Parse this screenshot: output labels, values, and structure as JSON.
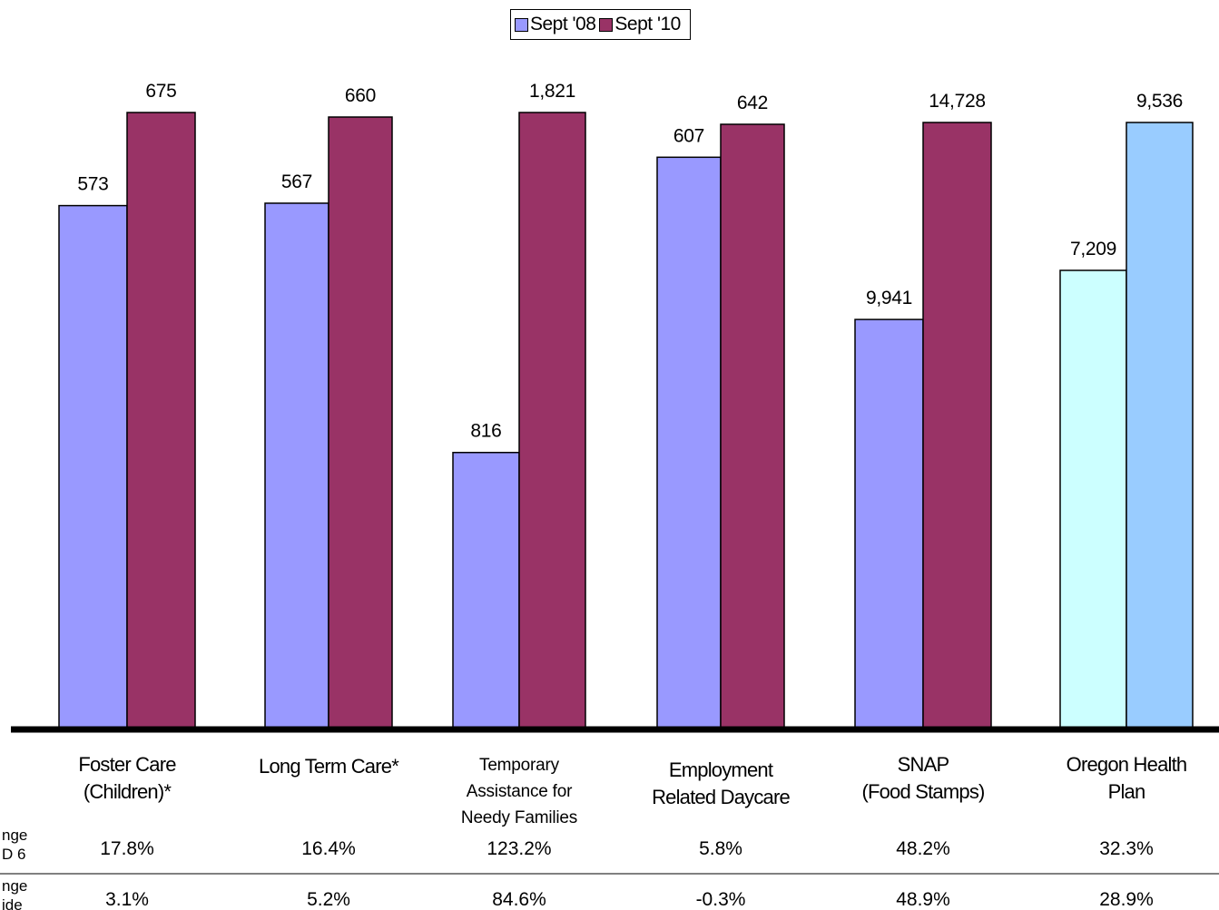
{
  "chart_data": {
    "type": "bar",
    "legend": [
      {
        "name": "Sept '08",
        "color": "#9999ff"
      },
      {
        "name": "Sept '10",
        "color": "#993366"
      }
    ],
    "legend_position": "top-center",
    "categories": [
      {
        "lines": [
          "Foster Care",
          "(Children)*"
        ],
        "small": false
      },
      {
        "lines": [
          "Long Term Care*"
        ],
        "small": false
      },
      {
        "lines": [
          "Temporary",
          "Assistance for",
          "Needy Families"
        ],
        "small": true
      },
      {
        "lines": [
          "Employment",
          "Related Daycare"
        ],
        "small": false
      },
      {
        "lines": [
          "SNAP",
          "(Food Stamps)"
        ],
        "small": false
      },
      {
        "lines": [
          "Oregon Health",
          "Plan"
        ],
        "small": false
      }
    ],
    "series": [
      {
        "name": "Sept '08",
        "values": [
          573,
          567,
          816,
          607,
          9941,
          7209
        ],
        "labels": [
          "573",
          "567",
          "816",
          "607",
          "9,941",
          "7,209"
        ]
      },
      {
        "name": "Sept '10",
        "values": [
          675,
          660,
          1821,
          642,
          14728,
          9536
        ],
        "labels": [
          "675",
          "660",
          "1,821",
          "642",
          "14,728",
          "9,536"
        ]
      }
    ],
    "point_colors": {
      "Sept '08": [
        "#9999ff",
        "#9999ff",
        "#9999ff",
        "#9999ff",
        "#9999ff",
        "#ccffff"
      ],
      "Sept '10": [
        "#993366",
        "#993366",
        "#993366",
        "#993366",
        "#993366",
        "#99ccff"
      ]
    },
    "scale_note": "each category is scaled independently to its own maximum",
    "table_rows": [
      {
        "label_lines": [
          "nge",
          "D 6"
        ],
        "values": [
          "17.8%",
          "16.4%",
          "123.2%",
          "5.8%",
          "48.2%",
          "32.3%"
        ]
      },
      {
        "label_lines": [
          "nge",
          "ide"
        ],
        "values": [
          "3.1%",
          "5.2%",
          "84.6%",
          "-0.3%",
          "48.9%",
          "28.9%"
        ]
      }
    ]
  }
}
